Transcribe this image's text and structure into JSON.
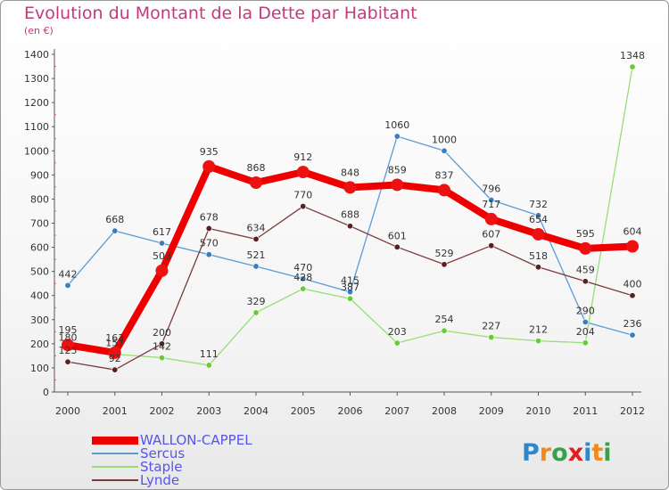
{
  "title": "Evolution du Montant de la Dette par Habitant",
  "subtitle": "(en €)",
  "logo": {
    "text": "Proxiti",
    "letters": [
      {
        "ch": "P",
        "color": "#2f86c8"
      },
      {
        "ch": "r",
        "color": "#f08a1a"
      },
      {
        "ch": "o",
        "color": "#3ba04a"
      },
      {
        "ch": "x",
        "color": "#e02020"
      },
      {
        "ch": "i",
        "color": "#2f86c8"
      },
      {
        "ch": "t",
        "color": "#f08a1a"
      },
      {
        "ch": "i",
        "color": "#3ba04a"
      }
    ]
  },
  "chart_data": {
    "type": "line",
    "x": [
      "2000",
      "2001",
      "2002",
      "2003",
      "2004",
      "2005",
      "2006",
      "2007",
      "2008",
      "2009",
      "2010",
      "2011",
      "2012"
    ],
    "ylim": [
      0,
      1400
    ],
    "yticks": [
      "0",
      "100",
      "200",
      "300",
      "400",
      "500",
      "600",
      "700",
      "800",
      "900",
      "1000",
      "1100",
      "1200",
      "1300",
      "1400"
    ],
    "grid": false,
    "legend_position": "bottom-left",
    "series": [
      {
        "name": "WALLON-CAPPEL",
        "color": "#ee0000",
        "point_color": "#ee1111",
        "width": 8,
        "radius": 7,
        "values": [
          195,
          163,
          503,
          935,
          868,
          912,
          848,
          859,
          837,
          717,
          654,
          595,
          604
        ]
      },
      {
        "name": "Sercus",
        "color": "#5b9bd5",
        "point_color": "#3a7ebf",
        "width": 1.3,
        "radius": 3.2,
        "values": [
          442,
          668,
          617,
          570,
          521,
          470,
          415,
          1060,
          1000,
          796,
          732,
          290,
          236
        ]
      },
      {
        "name": "Staple",
        "color": "#99dd77",
        "point_color": "#66cc33",
        "width": 1.3,
        "radius": 3.2,
        "values": [
          180,
          157,
          142,
          111,
          329,
          428,
          387,
          203,
          254,
          227,
          212,
          204,
          1348
        ]
      },
      {
        "name": "Lynde",
        "color": "#7a3b3b",
        "point_color": "#5a1f1f",
        "width": 1.3,
        "radius": 3.2,
        "values": [
          125,
          92,
          200,
          678,
          634,
          770,
          688,
          601,
          529,
          607,
          518,
          459,
          400
        ]
      }
    ]
  }
}
